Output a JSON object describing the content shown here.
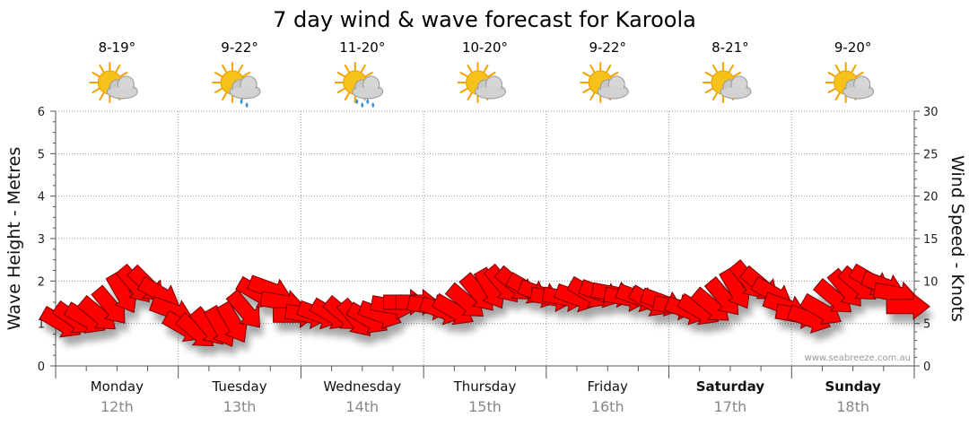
{
  "title": "7 day wind & wave forecast for Karoola",
  "days": [
    {
      "day": "Monday",
      "date": "12th",
      "temp": "8-19°",
      "icon": "partly-cloudy-icon",
      "bold": false
    },
    {
      "day": "Tuesday",
      "date": "13th",
      "temp": "9-22°",
      "icon": "showers-icon",
      "bold": false
    },
    {
      "day": "Wednesday",
      "date": "14th",
      "temp": "11-20°",
      "icon": "showers-icon",
      "bold": false
    },
    {
      "day": "Thursday",
      "date": "15th",
      "temp": "10-20°",
      "icon": "partly-cloudy-icon",
      "bold": false
    },
    {
      "day": "Friday",
      "date": "16th",
      "temp": "9-22°",
      "icon": "partly-cloudy-icon",
      "bold": false
    },
    {
      "day": "Saturday",
      "date": "17th",
      "temp": "8-21°",
      "icon": "partly-cloudy-icon",
      "bold": true
    },
    {
      "day": "Sunday",
      "date": "18th",
      "temp": "9-20°",
      "icon": "partly-cloudy-icon",
      "bold": true
    }
  ],
  "watermark": "www.seabreeze.com.au",
  "colors": {
    "arrow": "#ff0000",
    "arrow_stroke": "#7a0000",
    "grid": "#999999",
    "sun": "#f6c21a",
    "cloud": "#c8c8c8",
    "rain": "#3a8fd8"
  },
  "chart_data": {
    "type": "line",
    "title": "7 day wind & wave forecast for Karoola",
    "ylabel_left": "Wave Height - Metres",
    "ylabel_right": "Wind Speed - Knots",
    "ylim_left": [
      0,
      6
    ],
    "ylim_right": [
      0,
      30
    ],
    "yticks_left": [
      "0",
      "1",
      "2",
      "3",
      "4",
      "5",
      "6"
    ],
    "yticks_right": [
      "0",
      "5",
      "10",
      "15",
      "20",
      "25",
      "30"
    ],
    "x_units": "days from Monday 00:00",
    "series": [
      {
        "name": "Wind Speed (knots)",
        "axis": "right",
        "marker": "direction-arrow",
        "x": [
          0.05,
          0.15,
          0.25,
          0.35,
          0.45,
          0.55,
          0.65,
          0.75,
          0.85,
          0.95,
          1.05,
          1.15,
          1.25,
          1.35,
          1.45,
          1.55,
          1.65,
          1.75,
          1.85,
          1.95,
          2.05,
          2.15,
          2.25,
          2.35,
          2.45,
          2.55,
          2.65,
          2.75,
          2.85,
          2.95,
          3.05,
          3.15,
          3.25,
          3.35,
          3.45,
          3.55,
          3.65,
          3.75,
          3.85,
          3.95,
          4.05,
          4.15,
          4.25,
          4.35,
          4.45,
          4.55,
          4.65,
          4.75,
          4.85,
          4.95,
          5.05,
          5.15,
          5.25,
          5.35,
          5.45,
          5.55,
          5.65,
          5.75,
          5.85,
          5.95,
          6.05,
          6.15,
          6.25,
          6.35,
          6.45,
          6.55,
          6.65,
          6.75,
          6.85,
          6.95
        ],
        "values": [
          5,
          5.5,
          5.5,
          6,
          7,
          8.5,
          9.5,
          9.5,
          8.5,
          6.5,
          4.5,
          4,
          4.5,
          4.5,
          5,
          6.5,
          8.5,
          9,
          7.5,
          6,
          6,
          6,
          6,
          6,
          5.5,
          5.5,
          6,
          7,
          7.5,
          7.5,
          7,
          6.5,
          6.5,
          7.5,
          8.5,
          9,
          9.5,
          9.5,
          9,
          8.5,
          8,
          8,
          8,
          8.5,
          8.5,
          8.5,
          8,
          8,
          7.5,
          7.5,
          7,
          6.5,
          6.5,
          7,
          8,
          9,
          10,
          9.5,
          8.5,
          7,
          6,
          5.5,
          6.5,
          8,
          9,
          9.5,
          10,
          9.5,
          8.5,
          7
        ],
        "direction_deg": [
          300,
          305,
          300,
          310,
          320,
          330,
          320,
          315,
          300,
          290,
          300,
          310,
          320,
          330,
          330,
          320,
          300,
          290,
          280,
          270,
          280,
          290,
          300,
          310,
          320,
          300,
          290,
          280,
          270,
          270,
          280,
          290,
          300,
          310,
          320,
          330,
          320,
          310,
          300,
          290,
          280,
          280,
          290,
          300,
          290,
          280,
          280,
          290,
          300,
          290,
          280,
          290,
          300,
          310,
          320,
          330,
          320,
          310,
          300,
          290,
          280,
          290,
          300,
          310,
          320,
          310,
          300,
          290,
          280,
          270
        ]
      }
    ]
  }
}
